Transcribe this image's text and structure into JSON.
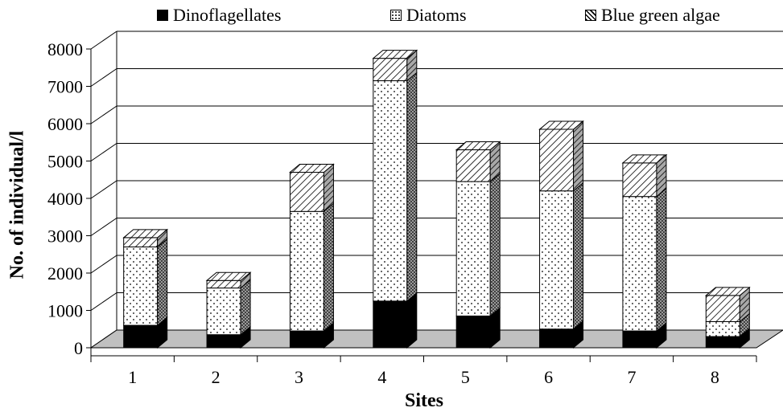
{
  "chart_data": {
    "type": "bar",
    "stacked": true,
    "style": "3d",
    "categories": [
      "1",
      "2",
      "3",
      "4",
      "5",
      "6",
      "7",
      "8"
    ],
    "series": [
      {
        "name": "Dinoflagellates",
        "pattern": "solid-black",
        "values": [
          600,
          350,
          450,
          1250,
          850,
          500,
          450,
          300
        ]
      },
      {
        "name": "Diatoms",
        "pattern": "dots",
        "values": [
          2100,
          1250,
          3200,
          5900,
          3600,
          3700,
          3600,
          400
        ]
      },
      {
        "name": "Blue green algae",
        "pattern": "diagonal-hatch",
        "values": [
          250,
          200,
          1050,
          600,
          850,
          1650,
          900,
          700
        ]
      }
    ],
    "xlabel": "Sites",
    "ylabel": "No. of individual/l",
    "ylim": [
      0,
      8000
    ],
    "yticks": [
      "0",
      "1000",
      "2000",
      "3000",
      "4000",
      "5000",
      "6000",
      "7000",
      "8000"
    ],
    "grid": true,
    "legend_position": "top",
    "colors": {
      "floor": "#c0c0c0",
      "dino": "#000000",
      "diatom_bg": "#ffffff",
      "blue_green_bg": "#ffffff"
    }
  }
}
